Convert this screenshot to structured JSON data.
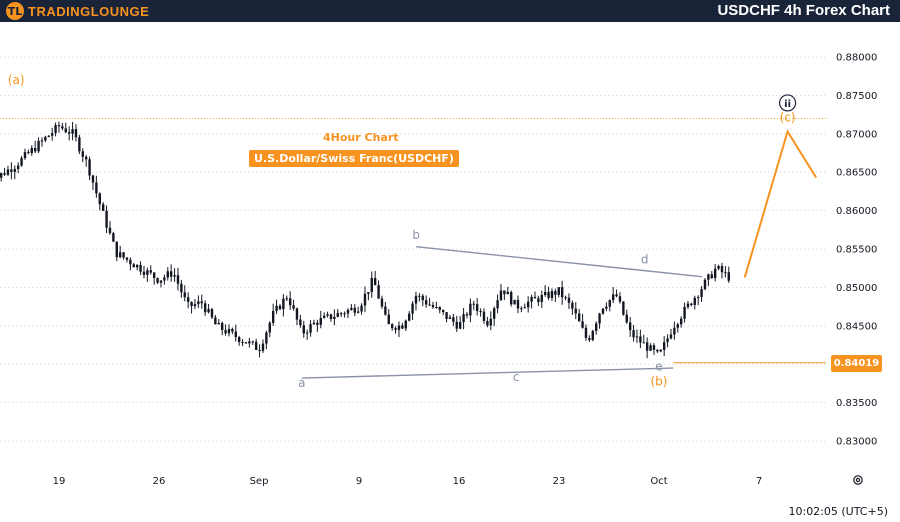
{
  "header": {
    "logo_mark": "TL",
    "logo_text": "TRADINGLOUNGE",
    "title": "USDCHF 4h Forex Chart"
  },
  "annotations": {
    "timeframe_label": "4Hour Chart",
    "pair_label": "U.S.Dollar/Swiss Franc(USDCHF)",
    "current_price": "0.84019",
    "clock": "10:02:05 (UTC+5)"
  },
  "colors": {
    "header_bg": "#1a2438",
    "accent": "#f7931e",
    "candle": "#131722",
    "triangle_line": "#8a92a6",
    "grid": "#c7cbd4"
  },
  "icons": [
    "settings-icon",
    "wave-circle-icon"
  ],
  "chart_data": {
    "type": "candlestick",
    "y_axis": {
      "ticks": [
        "0.88000",
        "0.87500",
        "0.87000",
        "0.86500",
        "0.86000",
        "0.85500",
        "0.85000",
        "0.84500",
        "0.84000",
        "0.83500",
        "0.83000"
      ],
      "range": [
        0.827,
        0.8885
      ]
    },
    "x_axis": {
      "ticks": [
        "19",
        "26",
        "Sep",
        "9",
        "16",
        "23",
        "Oct",
        "7"
      ]
    },
    "grid": "horizontal dotted",
    "series_path": [
      [
        "2024-08-14",
        0.8635
      ],
      [
        "2024-08-16",
        0.866
      ],
      [
        "2024-08-19",
        0.871
      ],
      [
        "2024-08-20",
        0.87
      ],
      [
        "2024-08-21",
        0.866
      ],
      [
        "2024-08-22",
        0.86
      ],
      [
        "2024-08-23",
        0.8545
      ],
      [
        "2024-08-26",
        0.851
      ],
      [
        "2024-08-27",
        0.852
      ],
      [
        "2024-08-28",
        0.8475
      ],
      [
        "2024-08-29",
        0.848
      ],
      [
        "2024-08-30",
        0.845
      ],
      [
        "2024-09-02",
        0.842
      ],
      [
        "2024-09-03",
        0.8465
      ],
      [
        "2024-09-04",
        0.849
      ],
      [
        "2024-09-05",
        0.844
      ],
      [
        "2024-09-06",
        0.8455
      ],
      [
        "2024-09-09",
        0.8475
      ],
      [
        "2024-09-10",
        0.851
      ],
      [
        "2024-09-11",
        0.845
      ],
      [
        "2024-09-12",
        0.845
      ],
      [
        "2024-09-13",
        0.849
      ],
      [
        "2024-09-16",
        0.845
      ],
      [
        "2024-09-17",
        0.848
      ],
      [
        "2024-09-18",
        0.8455
      ],
      [
        "2024-09-19",
        0.85
      ],
      [
        "2024-09-20",
        0.8475
      ],
      [
        "2024-09-23",
        0.8495
      ],
      [
        "2024-09-24",
        0.847
      ],
      [
        "2024-09-25",
        0.843
      ],
      [
        "2024-09-26",
        0.8475
      ],
      [
        "2024-09-27",
        0.849
      ],
      [
        "2024-09-28",
        0.844
      ],
      [
        "2024-09-30",
        0.841
      ],
      [
        "2024-10-01",
        0.845
      ],
      [
        "2024-10-02",
        0.8475
      ],
      [
        "2024-10-03",
        0.85
      ],
      [
        "2024-10-04",
        0.8525
      ],
      [
        "2024-10-05",
        0.8512
      ]
    ],
    "wave_labels": [
      {
        "text": "(a)",
        "x": "2024-08-16",
        "y": 0.8765,
        "color": "#f7931e"
      },
      {
        "text": "b",
        "x": "2024-09-13",
        "y": 0.8563,
        "color": "#8a92a6"
      },
      {
        "text": "d",
        "x": "2024-09-29",
        "y": 0.8531,
        "color": "#8a92a6"
      },
      {
        "text": "a",
        "x": "2024-09-05",
        "y": 0.837,
        "color": "#8a92a6"
      },
      {
        "text": "c",
        "x": "2024-09-20",
        "y": 0.8378,
        "color": "#8a92a6"
      },
      {
        "text": "e",
        "x": "2024-09-30",
        "y": 0.8392,
        "color": "#8a92a6"
      },
      {
        "text": "(b)",
        "x": "2024-09-30",
        "y": 0.8372,
        "color": "#f7931e"
      },
      {
        "text": "(c)",
        "x": "2024-10-09",
        "y": 0.8716,
        "color": "#f7931e"
      },
      {
        "text": "ii",
        "x": "2024-10-09",
        "y": 0.8735,
        "color": "#1a2438"
      }
    ],
    "triangle_upper": [
      [
        "2024-09-13",
        0.8553
      ],
      [
        "2024-10-03",
        0.8514
      ]
    ],
    "triangle_lower": [
      [
        "2024-09-05",
        0.8382
      ],
      [
        "2024-10-01",
        0.8395
      ]
    ],
    "projection": [
      [
        "2024-10-06",
        0.8513
      ],
      [
        "2024-10-09",
        0.8703
      ],
      [
        "2024-10-11",
        0.8643
      ]
    ],
    "horizontal_levels": [
      {
        "price": 0.872,
        "style": "dotted",
        "color": "#f7931e"
      },
      {
        "price": 0.84019,
        "style": "solid",
        "color": "#f7931e"
      }
    ]
  }
}
